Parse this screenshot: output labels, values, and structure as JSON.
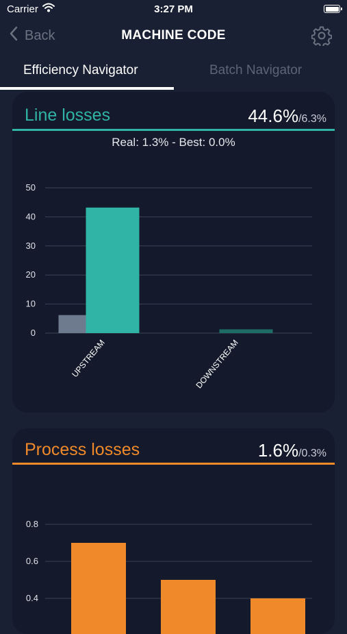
{
  "status_bar": {
    "carrier": "Carrier",
    "time": "3:27 PM"
  },
  "nav": {
    "back_label": "Back",
    "title": "MACHINE CODE"
  },
  "tabs": [
    {
      "label": "Efficiency Navigator",
      "active": true
    },
    {
      "label": "Batch Navigator",
      "active": false
    }
  ],
  "line_losses": {
    "title": "Line losses",
    "value": "44.6%",
    "secondary": "/6.3%",
    "subtitle": "Real: 1.3% - Best: 0.0%",
    "accent": "#2fb4a5"
  },
  "process_losses": {
    "title": "Process losses",
    "value": "1.6%",
    "secondary": "/0.3%",
    "accent": "#f0892a"
  },
  "chart_data": [
    {
      "type": "bar",
      "categories": [
        "UPSTREAM",
        "DOWNSTREAM"
      ],
      "series": [
        {
          "values": [
            6.2,
            0.0
          ],
          "color": "#6e7a8e"
        },
        {
          "values": [
            43.2,
            1.3
          ],
          "color": "#2fb4a5"
        }
      ],
      "yticks": [
        0,
        10,
        20,
        30,
        40,
        50
      ],
      "ylim": [
        0,
        50
      ],
      "grid": true
    },
    {
      "type": "bar",
      "categories": [
        "",
        "",
        ""
      ],
      "values": [
        0.7,
        0.5,
        0.4
      ],
      "color": "#f0892a",
      "yticks": [
        0.4,
        0.6,
        0.8
      ],
      "ylim": [
        0,
        0.8
      ],
      "grid": true
    }
  ]
}
